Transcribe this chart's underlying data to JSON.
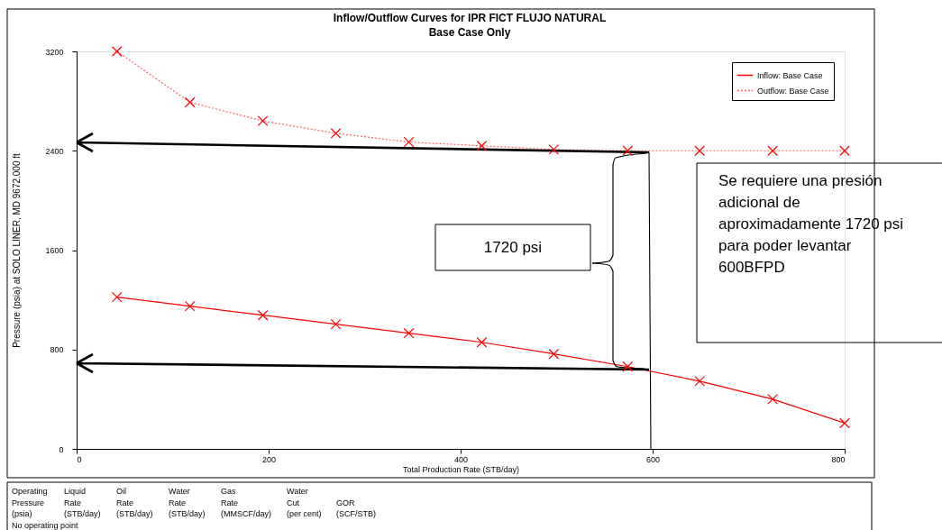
{
  "chart_data": {
    "type": "line",
    "title": "Inflow/Outflow Curves for IPR FICT FLUJO NATURAL",
    "subtitle": "Base Case Only",
    "xlabel": "Total Production Rate (STB/day)",
    "ylabel": "Pressure (psia) at SOLO LINER, MD 9672.000 ft",
    "x": [
      42,
      118,
      194,
      270,
      346,
      422,
      497,
      574,
      649,
      725,
      800
    ],
    "series": [
      {
        "name": "Inflow: Base Case",
        "color": "#ff0000",
        "line_style": "solid",
        "values": [
          1222,
          1149,
          1076,
          1004,
          931,
          858,
          764,
          662,
          545,
          400,
          207
        ]
      },
      {
        "name": "Outflow: Base Case",
        "color": "#ff6060",
        "line_style": "dotted",
        "values": [
          3200,
          2790,
          2640,
          2540,
          2470,
          2440,
          2410,
          2400,
          2400,
          2400,
          2400
        ]
      }
    ],
    "xlim": [
      0,
      800
    ],
    "xticks": [
      0,
      200,
      400,
      600,
      800
    ],
    "ylim": [
      0,
      3200
    ],
    "yticks": [
      0,
      800,
      1600,
      2400,
      3200
    ],
    "grid": false,
    "legend": "top right",
    "marker": "cross",
    "annotations": [
      "1720 psi",
      "Se requiere una presión adicional de aproximadamente 1720 psi para poder levantar 600BFPD",
      "Operating\nPressure\n(psia)",
      "Liquid\nRate\n(STB/day)",
      "Oil\nRate\n(STB/day)",
      "Water\nRate\n(STB/day)",
      "Gas\nRate\n(MMSCF/day)",
      "Water\nCut\n(per cent)",
      "GOR\n(SCF/STB)",
      "No operating point"
    ]
  }
}
